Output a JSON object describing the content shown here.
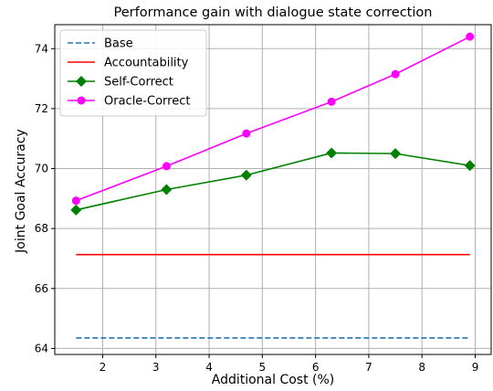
{
  "chart_data": {
    "type": "line",
    "title": "Performance gain with dialogue state correction",
    "xlabel": "Additional Cost (%)",
    "ylabel": "Joint Goal Accuracy",
    "xlim": [
      1.1,
      9.3
    ],
    "ylim": [
      63.8,
      74.8
    ],
    "xticks": [
      2,
      3,
      4,
      5,
      6,
      7,
      8,
      9
    ],
    "yticks": [
      64,
      66,
      68,
      70,
      72,
      74
    ],
    "grid": true,
    "legend_position": "top-left",
    "series": [
      {
        "name": "Base",
        "style": "dashed",
        "marker": "none",
        "color": "#1f77b4",
        "x": [
          1.5,
          8.9
        ],
        "y": [
          64.35,
          64.35
        ]
      },
      {
        "name": "Accountability",
        "style": "solid",
        "marker": "none",
        "color": "#ff0000",
        "x": [
          1.5,
          8.9
        ],
        "y": [
          67.13,
          67.13
        ]
      },
      {
        "name": "Self-Correct",
        "style": "solid",
        "marker": "diamond",
        "color": "#008000",
        "x": [
          1.5,
          3.2,
          4.7,
          6.3,
          7.5,
          8.9
        ],
        "y": [
          68.62,
          69.3,
          69.78,
          70.52,
          70.5,
          70.1
        ]
      },
      {
        "name": "Oracle-Correct",
        "style": "solid",
        "marker": "circle",
        "color": "#ff00ff",
        "x": [
          1.5,
          3.2,
          4.7,
          6.3,
          7.5,
          8.9
        ],
        "y": [
          68.93,
          70.08,
          71.17,
          72.23,
          73.15,
          74.4
        ]
      }
    ]
  }
}
